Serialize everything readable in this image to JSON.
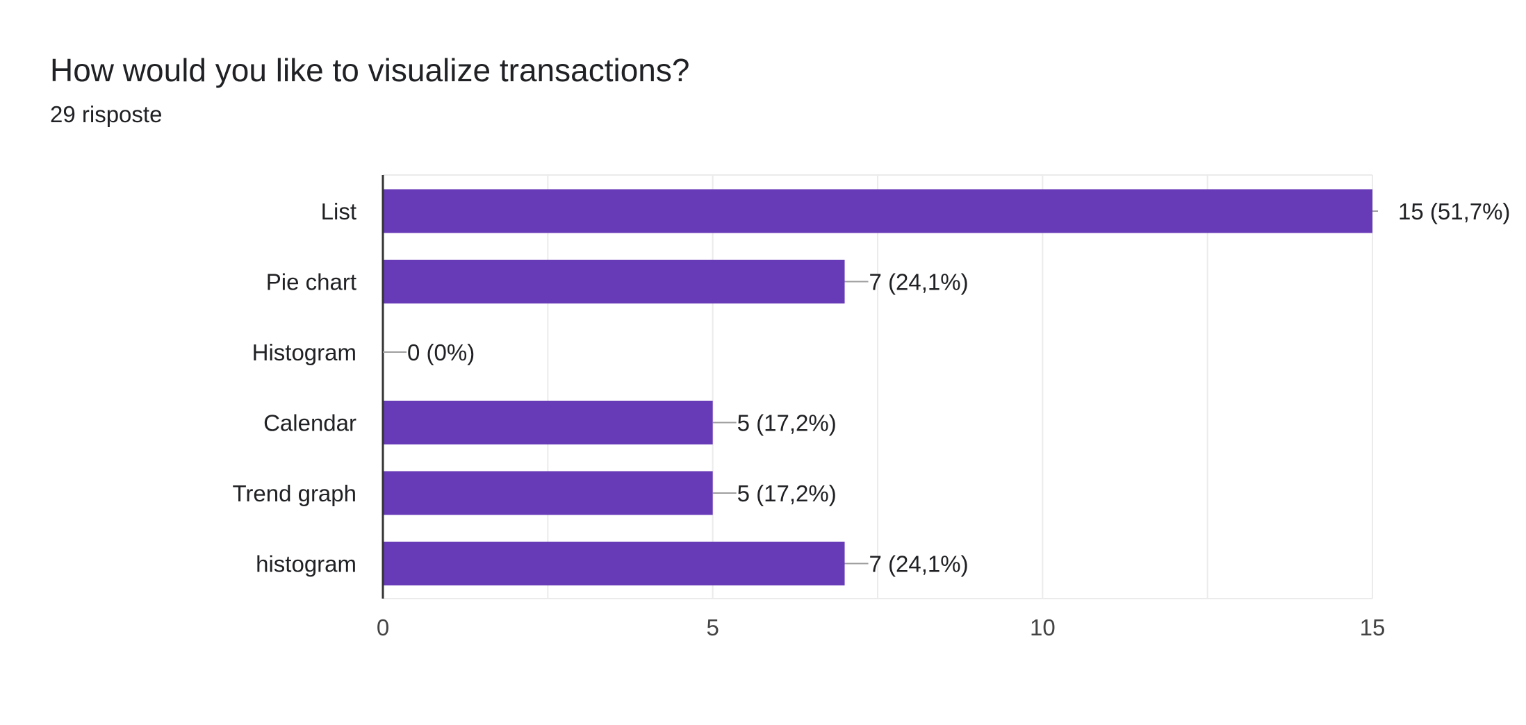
{
  "header": {
    "title": "How would you like to visualize transactions?",
    "subtitle": "29 risposte"
  },
  "colors": {
    "bar": "#673AB7",
    "grid": "#EBEBEB",
    "axis": "#333333",
    "leader": "#9E9E9E"
  },
  "chart_data": {
    "type": "bar",
    "orientation": "horizontal",
    "title": "How would you like to visualize transactions?",
    "subtitle": "29 risposte",
    "xlabel": "",
    "ylabel": "",
    "categories": [
      "List",
      "Pie chart",
      "Histogram",
      "Calendar",
      "Trend graph",
      "histogram"
    ],
    "values": [
      15,
      7,
      0,
      5,
      5,
      7
    ],
    "value_labels": [
      "15 (51,7%)",
      "7 (24,1%)",
      "0 (0%)",
      "5 (17,2%)",
      "5 (17,2%)",
      "7 (24,1%)"
    ],
    "xlim": [
      0,
      15
    ],
    "xticks": [
      0,
      5,
      10,
      15
    ],
    "xtick_labels": [
      "0",
      "5",
      "10",
      "15"
    ],
    "grid": true,
    "legend": "none"
  }
}
